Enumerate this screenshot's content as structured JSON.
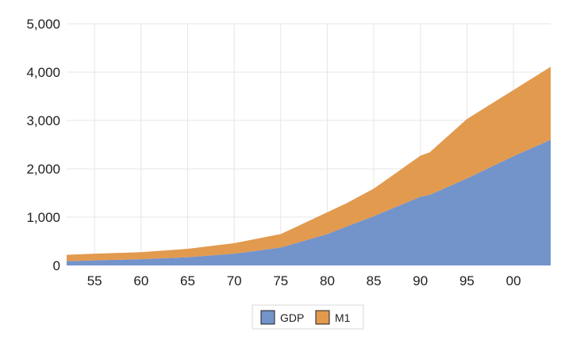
{
  "chart_data": {
    "type": "area",
    "stacked": true,
    "x_axis": {
      "min": 1952,
      "max": 2004,
      "ticks": [
        1955,
        1960,
        1965,
        1970,
        1975,
        1980,
        1985,
        1990,
        1995,
        2000
      ],
      "tick_labels": [
        "55",
        "60",
        "65",
        "70",
        "75",
        "80",
        "85",
        "90",
        "95",
        "00"
      ]
    },
    "y_axis": {
      "min": 0,
      "max": 5000,
      "ticks": [
        0,
        1000,
        2000,
        3000,
        4000,
        5000
      ],
      "tick_labels": [
        "0",
        "1,000",
        "2,000",
        "3,000",
        "4,000",
        "5,000"
      ]
    },
    "grid": true,
    "legend": {
      "position": "bottom"
    },
    "x": [
      1952,
      1955,
      1960,
      1965,
      1970,
      1975,
      1980,
      1982,
      1985,
      1990,
      1991,
      1995,
      2000,
      2004
    ],
    "series": [
      {
        "name": "GDP",
        "color": "#7393CB",
        "values": [
          90,
          105,
          130,
          170,
          245,
          370,
          650,
          800,
          1020,
          1420,
          1460,
          1800,
          2260,
          2600
        ]
      },
      {
        "name": "M1",
        "color": "#E29A4F",
        "values": [
          130,
          140,
          145,
          175,
          215,
          280,
          450,
          480,
          570,
          850,
          880,
          1230,
          1370,
          1510
        ]
      }
    ]
  }
}
